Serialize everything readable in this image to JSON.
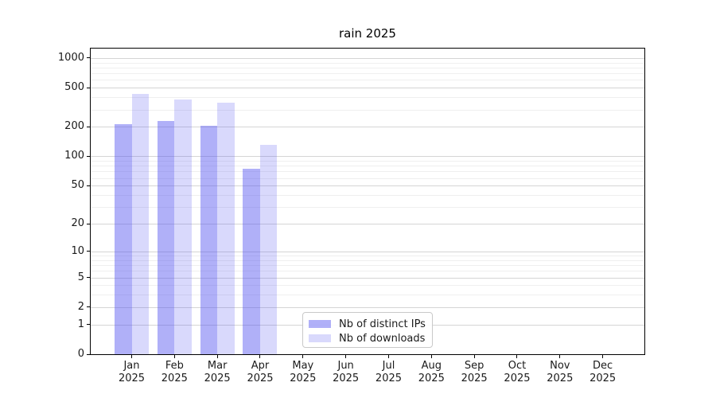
{
  "chart_data": {
    "type": "bar",
    "title": "rain 2025",
    "categories": [
      "Jan 2025",
      "Feb 2025",
      "Mar 2025",
      "Apr 2025",
      "May 2025",
      "Jun 2025",
      "Jul 2025",
      "Aug 2025",
      "Sep 2025",
      "Oct 2025",
      "Nov 2025",
      "Dec 2025"
    ],
    "series": [
      {
        "name": "Nb of distinct IPs",
        "color": "#5050f073",
        "values": [
          215,
          230,
          205,
          74,
          null,
          null,
          null,
          null,
          null,
          null,
          null,
          null
        ]
      },
      {
        "name": "Nb of downloads",
        "color": "#5050f038",
        "values": [
          430,
          380,
          355,
          132,
          null,
          null,
          null,
          null,
          null,
          null,
          null,
          null
        ]
      }
    ],
    "xlabel": "",
    "ylabel": "",
    "yscale": "log1p",
    "ylim": [
      0,
      1250
    ],
    "y_ticks": [
      0,
      1,
      2,
      5,
      10,
      20,
      50,
      100,
      200,
      500,
      1000
    ],
    "y_minor_ticks": [
      3,
      4,
      6,
      7,
      8,
      9,
      30,
      40,
      60,
      70,
      80,
      90,
      300,
      400,
      600,
      700,
      800,
      900
    ],
    "grid": true,
    "legend_position": "lower center",
    "colors": {
      "grid_major": "#d5d5d5",
      "grid_minor": "#efefef",
      "axis": "#000000",
      "text": "#1a1a1a"
    }
  }
}
